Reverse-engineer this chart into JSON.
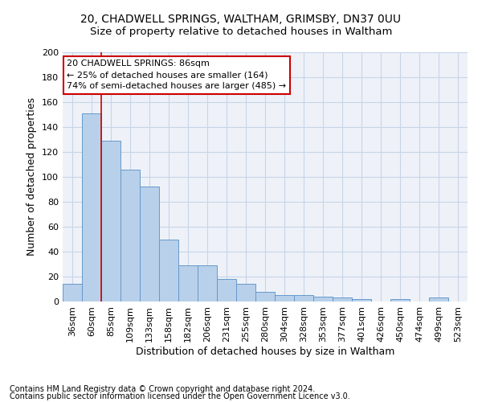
{
  "title1": "20, CHADWELL SPRINGS, WALTHAM, GRIMSBY, DN37 0UU",
  "title2": "Size of property relative to detached houses in Waltham",
  "xlabel": "Distribution of detached houses by size in Waltham",
  "ylabel": "Number of detached properties",
  "footnote1": "Contains HM Land Registry data © Crown copyright and database right 2024.",
  "footnote2": "Contains public sector information licensed under the Open Government Licence v3.0.",
  "annotation_line1": "20 CHADWELL SPRINGS: 86sqm",
  "annotation_line2": "← 25% of detached houses are smaller (164)",
  "annotation_line3": "74% of semi-detached houses are larger (485) →",
  "bar_categories": [
    "36sqm",
    "60sqm",
    "85sqm",
    "109sqm",
    "133sqm",
    "158sqm",
    "182sqm",
    "206sqm",
    "231sqm",
    "255sqm",
    "280sqm",
    "304sqm",
    "328sqm",
    "353sqm",
    "377sqm",
    "401sqm",
    "426sqm",
    "450sqm",
    "474sqm",
    "499sqm",
    "523sqm"
  ],
  "bar_values": [
    14,
    151,
    129,
    106,
    92,
    50,
    29,
    29,
    18,
    14,
    8,
    5,
    5,
    4,
    3,
    2,
    0,
    2,
    0,
    3,
    0
  ],
  "bar_color": "#b8d0ea",
  "bar_edge_color": "#6699cc",
  "vline_color": "#cc0000",
  "vline_x": 1.5,
  "ylim": [
    0,
    200
  ],
  "yticks": [
    0,
    20,
    40,
    60,
    80,
    100,
    120,
    140,
    160,
    180,
    200
  ],
  "grid_color": "#c8d4e8",
  "background_color": "#eef2f8",
  "annotation_box_color": "#ffffff",
  "annotation_box_edge": "#cc0000",
  "title_fontsize": 10,
  "subtitle_fontsize": 9.5,
  "axis_label_fontsize": 9,
  "tick_fontsize": 8,
  "annotation_fontsize": 8,
  "footnote_fontsize": 7
}
